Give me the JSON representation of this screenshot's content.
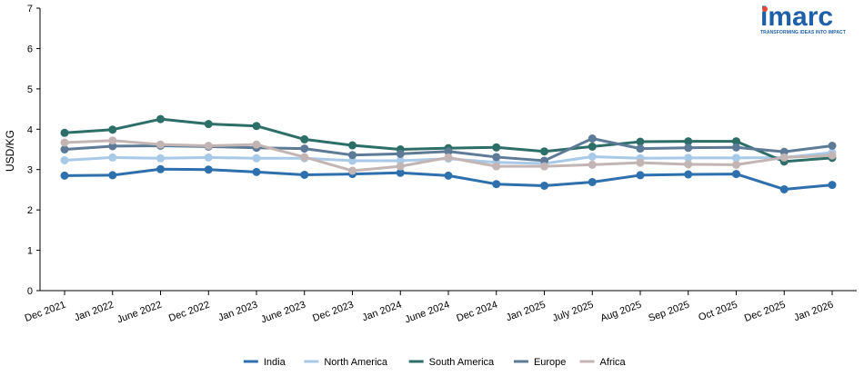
{
  "brand": {
    "name": "imarc",
    "tagline": "TRANSFORMING IDEAS INTO IMPACT",
    "colors": {
      "primary": "#1e5fa8",
      "accent": "#e8472f"
    }
  },
  "chart_data": {
    "type": "line",
    "title": "",
    "xlabel": "",
    "ylabel": "USD/KG",
    "ylim": [
      0,
      7
    ],
    "yticks": [
      0,
      1,
      2,
      3,
      4,
      5,
      6,
      7
    ],
    "grid": false,
    "legend_position": "bottom",
    "categories": [
      "Dec 2021",
      "Jan 2022",
      "June 2022",
      "Dec 2022",
      "Jan 2023",
      "June 2023",
      "Dec 2023",
      "Jan 2024",
      "June 2024",
      "Dec 2024",
      "Jan 2025",
      "July 2025",
      "Aug 2025",
      "Sep 2025",
      "Oct 2025",
      "Dec 2025",
      "Jan 2026"
    ],
    "series": [
      {
        "name": "India",
        "color": "#2e6fad",
        "values": [
          2.85,
          2.86,
          3.01,
          3.0,
          2.94,
          2.87,
          2.89,
          2.92,
          2.85,
          2.64,
          2.6,
          2.69,
          2.86,
          2.88,
          2.89,
          2.51,
          2.62
        ]
      },
      {
        "name": "North America",
        "color": "#a9c9e9",
        "values": [
          3.23,
          3.3,
          3.28,
          3.3,
          3.28,
          3.28,
          3.22,
          3.22,
          3.27,
          3.18,
          3.15,
          3.32,
          3.28,
          3.29,
          3.29,
          3.3,
          3.42
        ]
      },
      {
        "name": "South America",
        "color": "#2d6e68",
        "values": [
          3.91,
          3.99,
          4.25,
          4.13,
          4.08,
          3.75,
          3.6,
          3.5,
          3.53,
          3.55,
          3.45,
          3.57,
          3.69,
          3.7,
          3.7,
          3.2,
          3.29
        ]
      },
      {
        "name": "Europe",
        "color": "#5d7a96",
        "values": [
          3.5,
          3.58,
          3.59,
          3.57,
          3.54,
          3.52,
          3.36,
          3.39,
          3.45,
          3.31,
          3.22,
          3.77,
          3.52,
          3.54,
          3.55,
          3.44,
          3.59
        ]
      },
      {
        "name": "Africa",
        "color": "#c4b5b5",
        "values": [
          3.67,
          3.72,
          3.62,
          3.59,
          3.62,
          3.31,
          2.97,
          3.08,
          3.3,
          3.08,
          3.08,
          3.12,
          3.17,
          3.13,
          3.12,
          3.3,
          3.35
        ]
      }
    ]
  }
}
